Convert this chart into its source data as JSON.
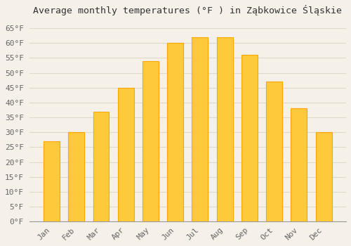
{
  "title": "Average monthly temperatures (°F ) in Ząbkowice Śląskie",
  "months": [
    "Jan",
    "Feb",
    "Mar",
    "Apr",
    "May",
    "Jun",
    "Jul",
    "Aug",
    "Sep",
    "Oct",
    "Nov",
    "Dec"
  ],
  "values": [
    27,
    30,
    37,
    45,
    54,
    60,
    62,
    62,
    56,
    47,
    38,
    30
  ],
  "bar_color": "#FFC93C",
  "bar_edge_color": "#FFA500",
  "background_color": "#f5f0e8",
  "plot_bg_color": "#f5f0e8",
  "grid_color": "#e0d8c8",
  "ylim": [
    0,
    68
  ],
  "yticks": [
    0,
    5,
    10,
    15,
    20,
    25,
    30,
    35,
    40,
    45,
    50,
    55,
    60,
    65
  ],
  "ylabel_suffix": "°F",
  "title_fontsize": 9.5,
  "tick_fontsize": 8,
  "font_family": "monospace",
  "bar_width": 0.65
}
